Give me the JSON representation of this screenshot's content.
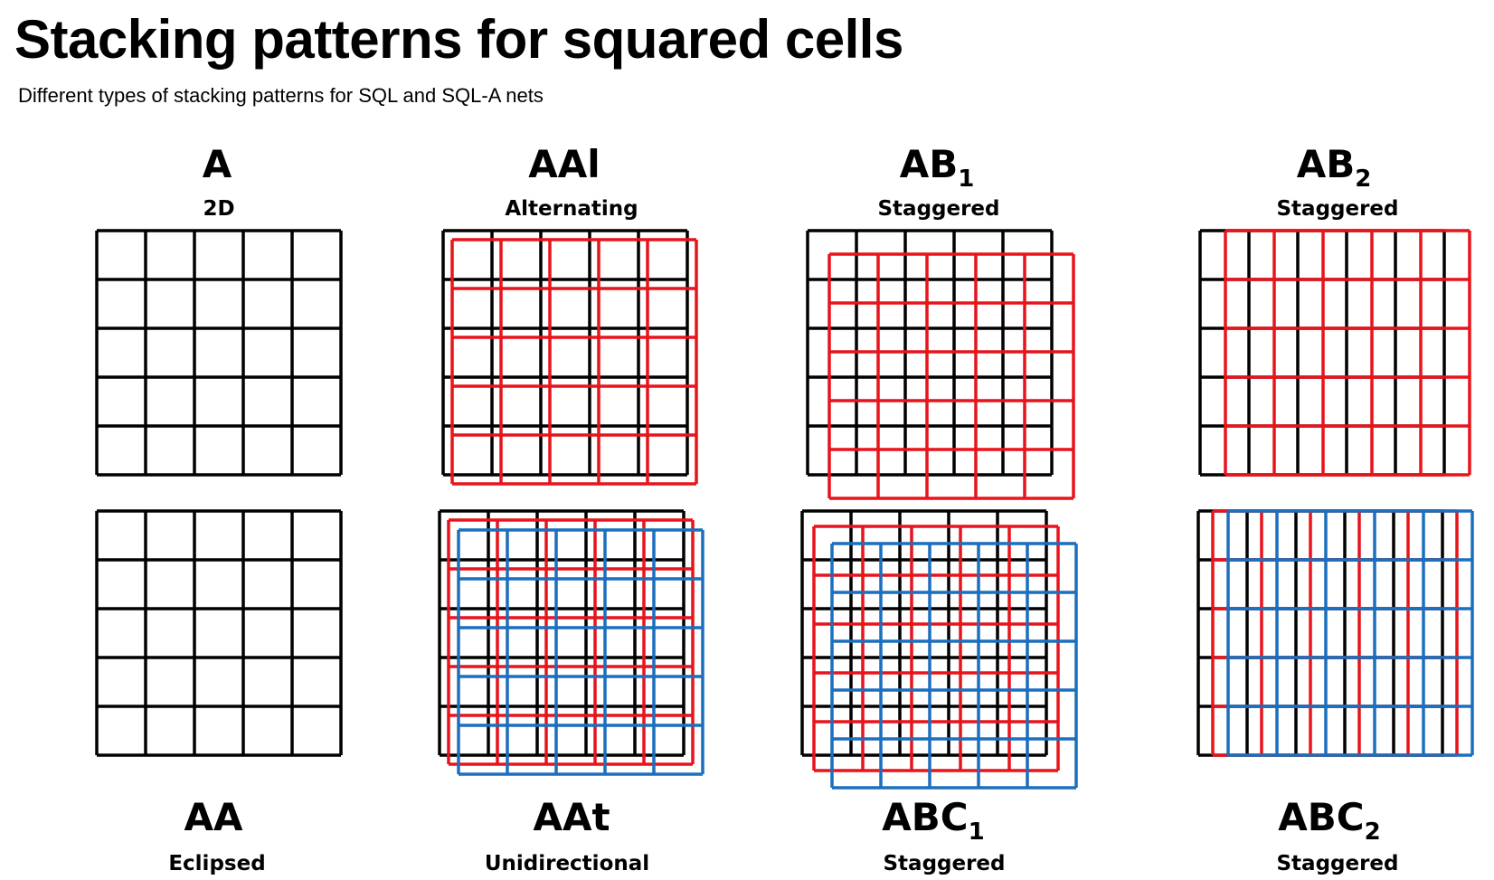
{
  "title": "Stacking patterns for squared cells",
  "subtitle": "Different types of stacking patterns for SQL and SQL-A nets",
  "colors": {
    "layer_a": "#000000",
    "layer_b": "#e8141c",
    "layer_c": "#1c6fbd"
  },
  "patterns": [
    {
      "name": "A",
      "subscript": "",
      "description": "2D"
    },
    {
      "name": "AAl",
      "subscript": "",
      "description": "Alternating"
    },
    {
      "name": "AB",
      "subscript": "1",
      "description": "Staggered"
    },
    {
      "name": "AB",
      "subscript": "2",
      "description": "Staggered"
    },
    {
      "name": "AA",
      "subscript": "",
      "description": "Eclipsed"
    },
    {
      "name": "AAt",
      "subscript": "",
      "description": "Unidirectional"
    },
    {
      "name": "ABC",
      "subscript": "1",
      "description": "Staggered"
    },
    {
      "name": "ABC",
      "subscript": "2",
      "description": "Staggered"
    }
  ]
}
